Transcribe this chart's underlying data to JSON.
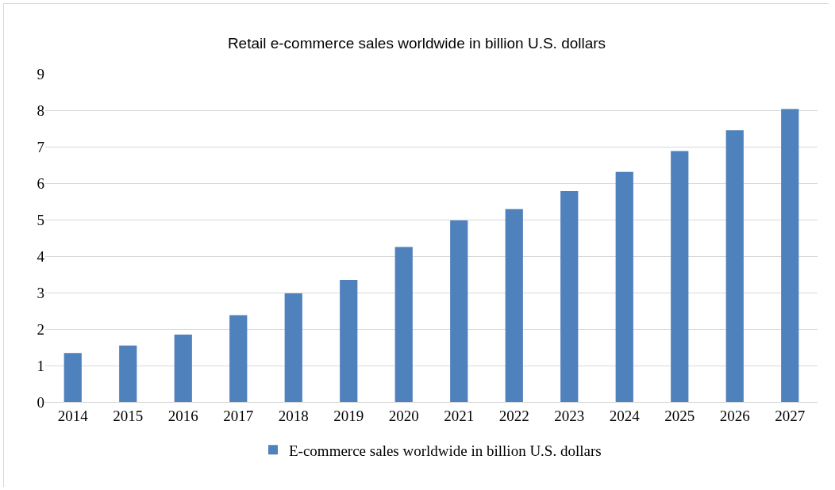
{
  "chart_data": {
    "type": "bar",
    "title": "Retail e-commerce sales worldwide in billion U.S. dollars",
    "categories": [
      "2014",
      "2015",
      "2016",
      "2017",
      "2018",
      "2019",
      "2020",
      "2021",
      "2022",
      "2023",
      "2024",
      "2025",
      "2026",
      "2027"
    ],
    "series": [
      {
        "name": "E-commerce sales worldwide in billion U.S. dollars",
        "color": "#4f81bd",
        "values": [
          1.34,
          1.55,
          1.85,
          2.38,
          2.98,
          3.35,
          4.25,
          4.98,
          5.29,
          5.78,
          6.31,
          6.88,
          7.45,
          8.03
        ]
      }
    ],
    "ylim": [
      0,
      9
    ],
    "yticks": [
      0,
      1,
      2,
      3,
      4,
      5,
      6,
      7,
      8,
      9
    ],
    "grid": "y",
    "legend": "bottom"
  }
}
